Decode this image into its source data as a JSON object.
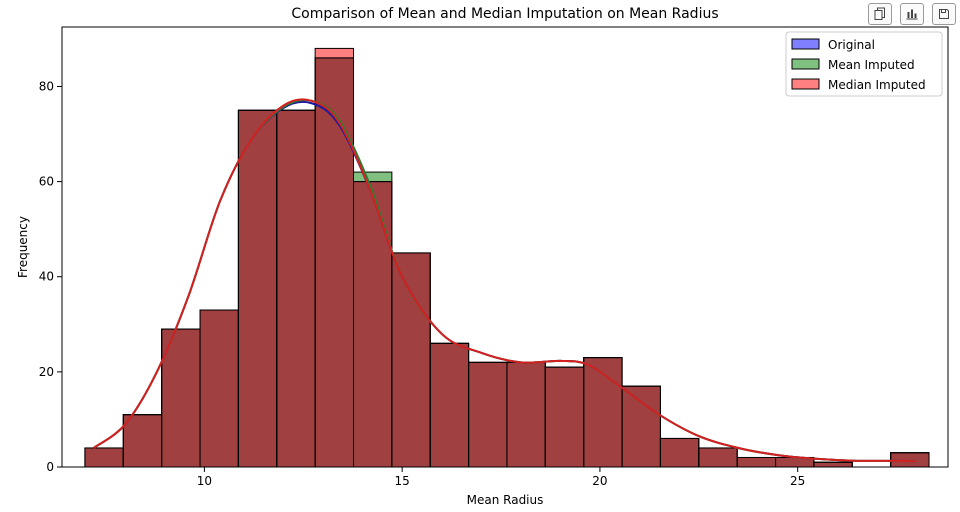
{
  "toolbar": {
    "items": [
      {
        "icon": "copy-icon"
      },
      {
        "icon": "bar-chart-icon"
      },
      {
        "icon": "save-icon"
      }
    ]
  },
  "chart_data": {
    "type": "bar",
    "title": "Comparison of Mean and Median Imputation on Mean Radius",
    "xlabel": "Mean Radius",
    "ylabel": "Frequency",
    "xlim": [
      6.4,
      28.8
    ],
    "ylim": [
      0,
      92.5
    ],
    "xticks": [
      10,
      15,
      20,
      25
    ],
    "yticks": [
      0,
      20,
      40,
      60,
      80
    ],
    "grid": false,
    "legend_position": "top-right",
    "bin_edges": [
      6.98,
      7.95,
      8.92,
      9.89,
      10.86,
      11.83,
      12.8,
      13.77,
      14.74,
      15.71,
      16.68,
      17.65,
      18.62,
      19.59,
      20.56,
      21.53,
      22.5,
      23.47,
      24.44,
      25.41,
      26.38,
      27.35,
      28.32
    ],
    "series": [
      {
        "name": "Original",
        "color": "#0000ff",
        "values": [
          4,
          11,
          29,
          33,
          75,
          75,
          86,
          60,
          45,
          26,
          22,
          22,
          21,
          23,
          17,
          6,
          4,
          2,
          2,
          1,
          0,
          3
        ],
        "kde_x": [
          7.2,
          8.0,
          8.8,
          9.6,
          10.4,
          11.2,
          12.0,
          12.7,
          13.4,
          14.2,
          15.0,
          16.0,
          17.0,
          18.0,
          19.0,
          19.7,
          20.5,
          21.5,
          22.5,
          23.5,
          24.5,
          25.5,
          26.5,
          27.5,
          28.0
        ],
        "kde_y": [
          4,
          9,
          20,
          36,
          56,
          69,
          75.5,
          76.5,
          72,
          58,
          40,
          28,
          24,
          22,
          22.3,
          21.5,
          17,
          11,
          6.5,
          4,
          2.5,
          1.7,
          1.3,
          1.3,
          1.2
        ]
      },
      {
        "name": "Mean Imputed",
        "color": "#008000",
        "values": [
          4,
          11,
          29,
          33,
          75,
          75,
          86,
          62,
          45,
          26,
          22,
          22,
          21,
          23,
          17,
          6,
          4,
          2,
          2,
          1,
          0,
          3
        ],
        "kde_x": [
          7.2,
          8.0,
          8.8,
          9.6,
          10.4,
          11.2,
          12.0,
          12.7,
          13.4,
          14.2,
          15.0,
          16.0,
          17.0,
          18.0,
          19.0,
          19.7,
          20.5,
          21.5,
          22.5,
          23.5,
          24.5,
          25.5,
          26.5,
          27.5,
          28.0
        ],
        "kde_y": [
          4,
          9,
          20,
          36,
          56,
          69,
          75.7,
          77,
          73,
          59,
          40,
          28,
          24,
          22,
          22.3,
          21.5,
          17,
          11,
          6.5,
          4,
          2.5,
          1.7,
          1.3,
          1.3,
          1.2
        ]
      },
      {
        "name": "Median Imputed",
        "color": "#ff0000",
        "values": [
          4,
          11,
          29,
          33,
          75,
          75,
          88,
          60,
          45,
          26,
          22,
          22,
          21,
          23,
          17,
          6,
          4,
          2,
          2,
          1,
          0,
          3
        ],
        "kde_x": [
          7.2,
          8.0,
          8.8,
          9.6,
          10.4,
          11.2,
          12.0,
          12.7,
          13.4,
          14.2,
          15.0,
          16.0,
          17.0,
          18.0,
          19.0,
          19.7,
          20.5,
          21.5,
          22.5,
          23.5,
          24.5,
          25.5,
          26.5,
          27.5,
          28.0
        ],
        "kde_y": [
          4,
          9,
          20,
          36,
          56,
          69,
          76,
          77,
          72.5,
          58,
          40,
          28,
          24,
          22,
          22.3,
          21.5,
          17,
          11,
          6.5,
          4,
          2.5,
          1.7,
          1.3,
          1.3,
          1.2
        ]
      }
    ]
  }
}
